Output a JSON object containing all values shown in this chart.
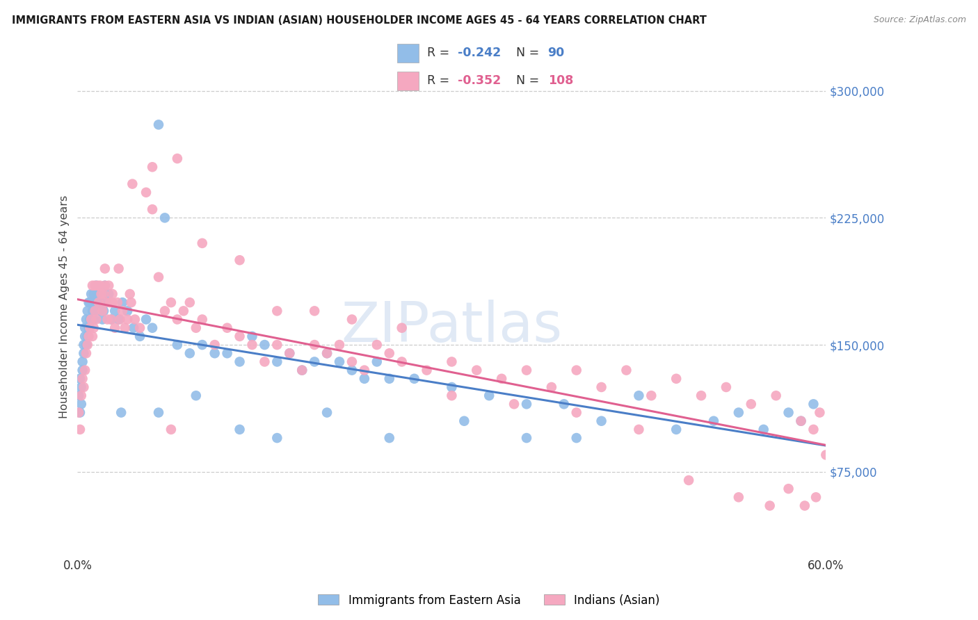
{
  "title": "IMMIGRANTS FROM EASTERN ASIA VS INDIAN (ASIAN) HOUSEHOLDER INCOME AGES 45 - 64 YEARS CORRELATION CHART",
  "source": "Source: ZipAtlas.com",
  "ylabel": "Householder Income Ages 45 - 64 years",
  "ytick_values": [
    75000,
    150000,
    225000,
    300000
  ],
  "ymin": 25000,
  "ymax": 320000,
  "xmin": 0.0,
  "xmax": 0.6,
  "blue_R": -0.242,
  "blue_N": 90,
  "pink_R": -0.352,
  "pink_N": 108,
  "blue_color": "#92BDE8",
  "pink_color": "#F5A8C0",
  "blue_line_color": "#4A7EC7",
  "pink_line_color": "#E06090",
  "legend_label_blue": "Immigrants from Eastern Asia",
  "legend_label_pink": "Indians (Asian)",
  "watermark": "ZIPatlas",
  "blue_scatter_x": [
    0.001,
    0.002,
    0.002,
    0.003,
    0.003,
    0.004,
    0.004,
    0.005,
    0.005,
    0.006,
    0.006,
    0.007,
    0.007,
    0.008,
    0.008,
    0.009,
    0.009,
    0.01,
    0.01,
    0.011,
    0.011,
    0.012,
    0.012,
    0.013,
    0.013,
    0.014,
    0.015,
    0.015,
    0.016,
    0.017,
    0.018,
    0.019,
    0.02,
    0.021,
    0.022,
    0.023,
    0.025,
    0.027,
    0.03,
    0.033,
    0.036,
    0.04,
    0.045,
    0.05,
    0.055,
    0.06,
    0.065,
    0.07,
    0.08,
    0.09,
    0.1,
    0.11,
    0.12,
    0.13,
    0.14,
    0.15,
    0.16,
    0.17,
    0.18,
    0.19,
    0.2,
    0.21,
    0.22,
    0.23,
    0.24,
    0.25,
    0.27,
    0.3,
    0.33,
    0.36,
    0.39,
    0.42,
    0.45,
    0.48,
    0.51,
    0.53,
    0.55,
    0.57,
    0.58,
    0.59,
    0.035,
    0.065,
    0.095,
    0.13,
    0.16,
    0.2,
    0.25,
    0.31,
    0.36,
    0.4
  ],
  "blue_scatter_y": [
    120000,
    110000,
    130000,
    125000,
    115000,
    140000,
    135000,
    150000,
    145000,
    155000,
    160000,
    150000,
    165000,
    155000,
    170000,
    160000,
    175000,
    165000,
    175000,
    165000,
    180000,
    170000,
    175000,
    165000,
    180000,
    175000,
    185000,
    175000,
    180000,
    170000,
    175000,
    180000,
    165000,
    170000,
    185000,
    175000,
    180000,
    165000,
    170000,
    165000,
    175000,
    170000,
    160000,
    155000,
    165000,
    160000,
    280000,
    225000,
    150000,
    145000,
    150000,
    145000,
    145000,
    140000,
    155000,
    150000,
    140000,
    145000,
    135000,
    140000,
    145000,
    140000,
    135000,
    130000,
    140000,
    130000,
    130000,
    125000,
    120000,
    115000,
    115000,
    105000,
    120000,
    100000,
    105000,
    110000,
    100000,
    110000,
    105000,
    115000,
    110000,
    110000,
    120000,
    100000,
    95000,
    110000,
    95000,
    105000,
    95000,
    95000
  ],
  "pink_scatter_x": [
    0.001,
    0.002,
    0.003,
    0.004,
    0.005,
    0.006,
    0.007,
    0.008,
    0.009,
    0.01,
    0.011,
    0.012,
    0.013,
    0.014,
    0.015,
    0.016,
    0.017,
    0.018,
    0.019,
    0.02,
    0.021,
    0.022,
    0.023,
    0.024,
    0.025,
    0.026,
    0.027,
    0.028,
    0.03,
    0.032,
    0.034,
    0.036,
    0.038,
    0.04,
    0.043,
    0.046,
    0.05,
    0.055,
    0.06,
    0.065,
    0.07,
    0.075,
    0.08,
    0.085,
    0.09,
    0.095,
    0.1,
    0.11,
    0.12,
    0.13,
    0.14,
    0.15,
    0.16,
    0.17,
    0.18,
    0.19,
    0.2,
    0.21,
    0.22,
    0.23,
    0.24,
    0.25,
    0.26,
    0.28,
    0.3,
    0.32,
    0.34,
    0.36,
    0.38,
    0.4,
    0.42,
    0.44,
    0.46,
    0.48,
    0.5,
    0.52,
    0.54,
    0.56,
    0.58,
    0.59,
    0.595,
    0.6,
    0.012,
    0.022,
    0.033,
    0.044,
    0.06,
    0.08,
    0.1,
    0.13,
    0.16,
    0.19,
    0.22,
    0.26,
    0.3,
    0.35,
    0.4,
    0.45,
    0.49,
    0.53,
    0.555,
    0.57,
    0.583,
    0.592,
    0.014,
    0.028,
    0.042,
    0.075
  ],
  "pink_scatter_y": [
    110000,
    100000,
    120000,
    130000,
    125000,
    135000,
    145000,
    150000,
    155000,
    160000,
    165000,
    155000,
    160000,
    170000,
    165000,
    185000,
    175000,
    185000,
    180000,
    170000,
    180000,
    185000,
    175000,
    165000,
    185000,
    175000,
    165000,
    175000,
    160000,
    175000,
    165000,
    170000,
    160000,
    165000,
    175000,
    165000,
    160000,
    240000,
    230000,
    190000,
    170000,
    175000,
    165000,
    170000,
    175000,
    160000,
    165000,
    150000,
    160000,
    155000,
    150000,
    140000,
    150000,
    145000,
    135000,
    150000,
    145000,
    150000,
    140000,
    135000,
    150000,
    145000,
    140000,
    135000,
    140000,
    135000,
    130000,
    135000,
    125000,
    135000,
    125000,
    135000,
    120000,
    130000,
    120000,
    125000,
    115000,
    120000,
    105000,
    100000,
    110000,
    85000,
    185000,
    195000,
    195000,
    245000,
    255000,
    260000,
    210000,
    200000,
    170000,
    170000,
    165000,
    160000,
    120000,
    115000,
    110000,
    100000,
    70000,
    60000,
    55000,
    65000,
    55000,
    60000,
    185000,
    180000,
    180000,
    100000
  ]
}
